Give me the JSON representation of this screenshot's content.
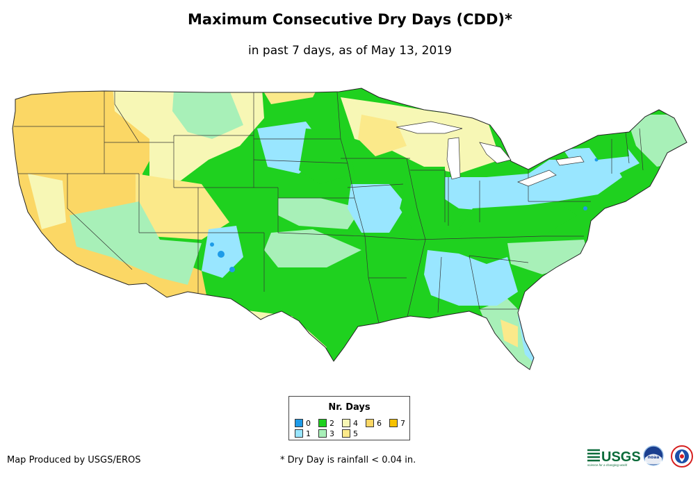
{
  "title": "Maximum Consecutive Dry Days (CDD)*",
  "subtitle": "in past 7 days, as of May 13, 2019",
  "legend": {
    "title": "Nr. Days",
    "items": [
      {
        "label": "0",
        "color": "#1e9be8"
      },
      {
        "label": "1",
        "color": "#99e6ff"
      },
      {
        "label": "2",
        "color": "#1fd11f"
      },
      {
        "label": "3",
        "color": "#a8f0b8"
      },
      {
        "label": "4",
        "color": "#f7f7b5"
      },
      {
        "label": "5",
        "color": "#fbe98a"
      },
      {
        "label": "6",
        "color": "#fbd765"
      },
      {
        "label": "7",
        "color": "#f7c200"
      }
    ]
  },
  "footer": {
    "credit": "Map Produced by USGS/EROS",
    "note": "* Dry Day is rainfall < 0.04 in."
  },
  "logos": {
    "usgs_text": "USGS",
    "usgs_tagline": "science for a changing world",
    "noaa_text": "noaa"
  }
}
